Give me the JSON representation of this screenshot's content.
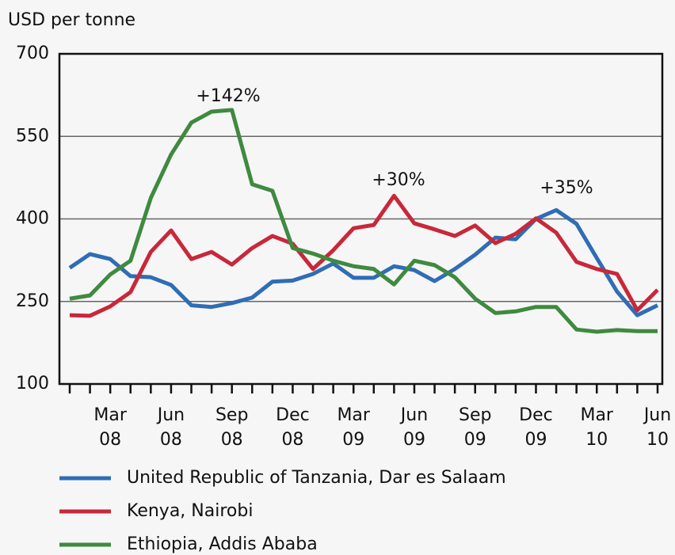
{
  "chart_data": {
    "type": "line",
    "y_axis_label": "USD per tonne",
    "categories": [
      null,
      null,
      "Mar 08",
      null,
      null,
      "Jun 08",
      null,
      null,
      "Sep 08",
      null,
      null,
      "Dec 08",
      null,
      null,
      "Mar 09",
      null,
      null,
      "Jun 09",
      null,
      null,
      "Sep 09",
      null,
      null,
      "Dec 09",
      null,
      null,
      "Mar 10",
      null,
      null,
      "Jun 10"
    ],
    "ylim": [
      100,
      700
    ],
    "yticks": [
      100,
      250,
      400,
      550,
      700
    ],
    "grid": true,
    "legend": "bottom",
    "series": [
      {
        "name": "United Republic of Tanzania, Dar es Salaam",
        "color": "#2f6db5",
        "values": [
          311,
          336,
          327,
          296,
          294,
          280,
          243,
          240,
          247,
          257,
          286,
          288,
          300,
          319,
          293,
          293,
          314,
          307,
          287,
          309,
          335,
          366,
          363,
          400,
          416,
          391,
          329,
          268,
          225,
          243
        ]
      },
      {
        "name": "Kenya, Nairobi",
        "color": "#c8283a",
        "values": [
          225,
          224,
          241,
          267,
          340,
          379,
          327,
          340,
          317,
          347,
          369,
          355,
          309,
          343,
          383,
          389,
          442,
          392,
          381,
          369,
          388,
          356,
          373,
          401,
          375,
          322,
          309,
          300,
          234,
          271
        ]
      },
      {
        "name": "Ethiopia, Addis Ababa",
        "color": "#3f8a3f",
        "values": [
          255,
          261,
          299,
          324,
          438,
          517,
          575,
          595,
          598,
          463,
          451,
          347,
          337,
          324,
          314,
          309,
          281,
          324,
          316,
          294,
          255,
          229,
          232,
          240,
          240,
          199,
          195,
          198,
          196,
          196
        ]
      }
    ],
    "annotations": [
      {
        "text": "+142%"
      },
      {
        "text": "+30%"
      },
      {
        "text": "+35%"
      }
    ]
  }
}
